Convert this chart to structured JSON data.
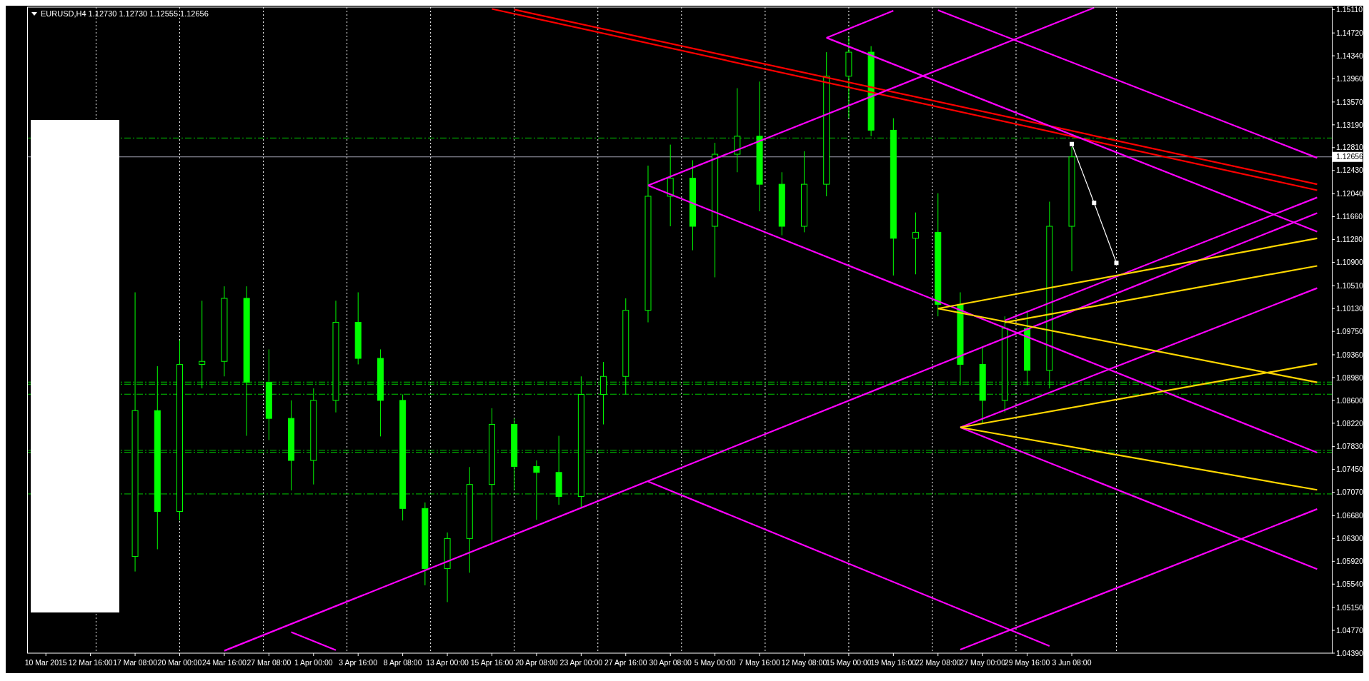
{
  "chart_data": {
    "type": "candlestick",
    "title": "EURUSD,H4  1.12730 1.12730 1.12555 1.12656",
    "color": "#00ff00",
    "categories": [
      "10 Mar 2015",
      null,
      "12 Mar 16:00",
      null,
      "17 Mar 08:00",
      null,
      "20 Mar 00:00",
      null,
      "24 Mar 16:00",
      null,
      "27 Mar 08:00",
      null,
      "1 Apr 00:00",
      null,
      "3 Apr 16:00",
      null,
      "8 Apr 08:00",
      null,
      "13 Apr 00:00",
      null,
      "15 Apr 16:00",
      null,
      "20 Apr 08:00",
      null,
      "23 Apr 00:00",
      null,
      "27 Apr 16:00",
      null,
      "30 Apr 08:00",
      null,
      "5 May 00:00",
      null,
      "7 May 16:00",
      null,
      "12 May 08:00",
      null,
      "15 May 00:00",
      null,
      "19 May 16:00",
      null,
      "22 May 08:00",
      null,
      "27 May 00:00",
      null,
      "29 May 16:00",
      null,
      "3 Jun 08:00",
      null,
      null,
      null,
      null,
      null,
      null,
      null,
      null,
      null,
      null,
      null
    ],
    "grid": "x",
    "ohlc": [
      null,
      null,
      null,
      null,
      [
        1.06,
        1.104,
        1.0575,
        1.0843
      ],
      [
        1.0843,
        1.0917,
        1.0612,
        1.0675
      ],
      [
        1.0675,
        1.096,
        1.066,
        1.092
      ],
      [
        1.092,
        1.1026,
        1.088,
        1.0925
      ],
      [
        1.0925,
        1.105,
        1.09,
        1.103
      ],
      [
        1.103,
        1.105,
        1.0801,
        1.089
      ],
      [
        1.089,
        1.0945,
        1.0794,
        1.083
      ],
      [
        1.083,
        1.086,
        1.071,
        1.076
      ],
      [
        1.076,
        1.088,
        1.072,
        1.086
      ],
      [
        1.086,
        1.1026,
        1.084,
        1.099
      ],
      [
        1.099,
        1.104,
        1.092,
        1.093
      ],
      [
        1.093,
        1.0945,
        1.08,
        1.086
      ],
      [
        1.086,
        1.087,
        1.066,
        1.068
      ],
      [
        1.068,
        1.069,
        1.0552,
        1.058
      ],
      [
        1.058,
        1.064,
        1.0524,
        1.063
      ],
      [
        1.063,
        1.0749,
        1.0573,
        1.072
      ],
      [
        1.072,
        1.0847,
        1.0625,
        1.082
      ],
      [
        1.082,
        1.083,
        1.071,
        1.075
      ],
      [
        1.075,
        1.076,
        1.0661,
        1.074
      ],
      [
        1.074,
        1.0801,
        1.0686,
        1.07
      ],
      [
        1.07,
        1.09,
        1.068,
        1.087
      ],
      [
        1.087,
        1.0924,
        1.082,
        1.09
      ],
      [
        1.09,
        1.103,
        1.087,
        1.101
      ],
      [
        1.101,
        1.1251,
        1.099,
        1.12
      ],
      [
        1.12,
        1.1286,
        1.115,
        1.123
      ],
      [
        1.123,
        1.126,
        1.111,
        1.115
      ],
      [
        1.115,
        1.1289,
        1.1065,
        1.127
      ],
      [
        1.127,
        1.138,
        1.124,
        1.13
      ],
      [
        1.13,
        1.1391,
        1.1175,
        1.122
      ],
      [
        1.122,
        1.124,
        1.1135,
        1.115
      ],
      [
        1.115,
        1.1275,
        1.114,
        1.122
      ],
      [
        1.122,
        1.144,
        1.12,
        1.14
      ],
      [
        1.14,
        1.1465,
        1.133,
        1.144
      ],
      [
        1.144,
        1.145,
        1.13,
        1.131
      ],
      [
        1.131,
        1.133,
        1.1068,
        1.113
      ],
      [
        1.113,
        1.1173,
        1.107,
        1.114
      ],
      [
        1.114,
        1.1205,
        1.1,
        1.102
      ],
      [
        1.102,
        1.104,
        1.0885,
        1.092
      ],
      [
        1.092,
        1.095,
        1.0822,
        1.086
      ],
      [
        1.086,
        1.1,
        1.084,
        1.098
      ],
      [
        1.098,
        1.101,
        1.0885,
        1.091
      ],
      [
        1.091,
        1.1191,
        1.088,
        1.115
      ],
      [
        1.115,
        1.1282,
        1.1075,
        1.12656
      ],
      null,
      null,
      null,
      null,
      null,
      null,
      null,
      null,
      null,
      null,
      null
    ],
    "ylim": [
      1.0439,
      1.1515
    ],
    "yticks": [
      {
        "value": 1.1511,
        "label": "1.15110"
      },
      {
        "value": 1.1472,
        "label": "1.14720"
      },
      {
        "value": 1.1434,
        "label": "1.14340"
      },
      {
        "value": 1.1396,
        "label": "1.13960"
      },
      {
        "value": 1.1357,
        "label": "1.13570"
      },
      {
        "value": 1.1319,
        "label": "1.13190"
      },
      {
        "value": 1.1281,
        "label": "1.12810"
      },
      {
        "value": 1.1243,
        "label": "1.12430"
      },
      {
        "value": 1.1204,
        "label": "1.12040"
      },
      {
        "value": 1.1166,
        "label": "1.11660"
      },
      {
        "value": 1.1128,
        "label": "1.11280"
      },
      {
        "value": 1.109,
        "label": "1.10900"
      },
      {
        "value": 1.1051,
        "label": "1.10510"
      },
      {
        "value": 1.1013,
        "label": "1.10130"
      },
      {
        "value": 1.0975,
        "label": "1.09750"
      },
      {
        "value": 1.0936,
        "label": "1.09360"
      },
      {
        "value": 1.0898,
        "label": "1.08980"
      },
      {
        "value": 1.086,
        "label": "1.08600"
      },
      {
        "value": 1.0822,
        "label": "1.08220"
      },
      {
        "value": 1.0783,
        "label": "1.07830"
      },
      {
        "value": 1.0745,
        "label": "1.07450"
      },
      {
        "value": 1.0707,
        "label": "1.07070"
      },
      {
        "value": 1.0668,
        "label": "1.06680"
      },
      {
        "value": 1.063,
        "label": "1.06300"
      },
      {
        "value": 1.0592,
        "label": "1.05920"
      },
      {
        "value": 1.0554,
        "label": "1.05540"
      },
      {
        "value": 1.0515,
        "label": "1.05150"
      },
      {
        "value": 1.0477,
        "label": "1.04770"
      },
      {
        "value": 1.0439,
        "label": "1.04390"
      }
    ],
    "series": [
      {
        "type": "line",
        "color": "#ff0000",
        "values": [
          null,
          null,
          null,
          null,
          null,
          null,
          null,
          null,
          null,
          null,
          null,
          null,
          null,
          null,
          null,
          null,
          null,
          null,
          null,
          null,
          1.1512,
          null,
          null,
          null,
          null,
          null,
          null,
          null,
          null,
          null,
          null,
          null,
          null,
          null,
          null,
          null,
          null,
          null,
          null,
          null,
          null,
          null,
          null,
          null,
          null,
          null,
          null,
          null,
          null,
          null,
          null,
          null,
          null,
          null,
          null,
          null,
          null,
          1.121
        ]
      },
      {
        "type": "line",
        "color": "#ff0000",
        "values": [
          null,
          null,
          null,
          null,
          null,
          null,
          null,
          null,
          null,
          null,
          null,
          null,
          null,
          null,
          null,
          null,
          null,
          null,
          null,
          null,
          null,
          1.1511,
          null,
          null,
          null,
          null,
          null,
          null,
          null,
          null,
          null,
          null,
          null,
          null,
          null,
          null,
          null,
          null,
          null,
          null,
          null,
          null,
          null,
          null,
          null,
          null,
          null,
          null,
          null,
          null,
          null,
          null,
          null,
          null,
          null,
          null,
          null,
          1.122
        ]
      },
      {
        "type": "line",
        "color": "#ff00ff",
        "values": [
          null,
          null,
          null,
          null,
          null,
          null,
          null,
          null,
          null,
          null,
          null,
          null,
          null,
          null,
          null,
          null,
          null,
          null,
          null,
          null,
          null,
          null,
          null,
          null,
          null,
          null,
          null,
          1.1218,
          null,
          null,
          null,
          null,
          null,
          null,
          null,
          null,
          null,
          null,
          null,
          null,
          null,
          null,
          null,
          null,
          null,
          null,
          null,
          1.1514,
          null,
          null,
          null,
          null,
          null,
          null,
          null,
          null,
          null,
          null
        ]
      },
      {
        "type": "line",
        "color": "#ff00ff",
        "values": [
          null,
          null,
          null,
          null,
          null,
          null,
          null,
          null,
          null,
          null,
          null,
          null,
          null,
          null,
          null,
          null,
          null,
          null,
          null,
          null,
          null,
          null,
          null,
          null,
          null,
          null,
          null,
          1.1218,
          null,
          null,
          null,
          null,
          null,
          null,
          null,
          null,
          null,
          null,
          null,
          null,
          null,
          null,
          null,
          null,
          null,
          null,
          null,
          null,
          null,
          null,
          null,
          null,
          null,
          null,
          null,
          null,
          null,
          1.0773
        ]
      },
      {
        "type": "line",
        "color": "#ff00ff",
        "values": [
          null,
          null,
          null,
          null,
          null,
          null,
          null,
          null,
          null,
          null,
          null,
          null,
          null,
          null,
          null,
          null,
          null,
          null,
          null,
          null,
          null,
          null,
          null,
          null,
          null,
          null,
          null,
          null,
          null,
          null,
          null,
          null,
          null,
          null,
          null,
          1.1464,
          null,
          null,
          1.1509,
          null,
          null,
          null,
          null,
          null,
          null,
          null,
          null,
          null,
          null,
          null,
          null,
          null,
          null,
          null,
          null,
          null,
          null,
          null
        ]
      },
      {
        "type": "line",
        "color": "#ff00ff",
        "values": [
          null,
          null,
          null,
          null,
          null,
          null,
          null,
          null,
          null,
          null,
          null,
          null,
          null,
          null,
          null,
          null,
          null,
          null,
          null,
          null,
          null,
          null,
          null,
          null,
          null,
          null,
          null,
          null,
          null,
          null,
          null,
          null,
          null,
          null,
          null,
          1.1464,
          null,
          null,
          null,
          null,
          null,
          null,
          null,
          null,
          null,
          null,
          null,
          null,
          null,
          null,
          null,
          null,
          null,
          null,
          null,
          null,
          null,
          1.1141
        ]
      },
      {
        "type": "line",
        "color": "#ff00ff",
        "values": [
          null,
          null,
          null,
          null,
          null,
          null,
          null,
          null,
          null,
          null,
          null,
          null,
          null,
          null,
          null,
          null,
          null,
          null,
          null,
          null,
          null,
          null,
          null,
          null,
          null,
          null,
          null,
          null,
          null,
          null,
          null,
          null,
          null,
          null,
          null,
          null,
          null,
          null,
          null,
          null,
          1.151,
          null,
          null,
          null,
          null,
          null,
          null,
          null,
          null,
          null,
          null,
          null,
          null,
          null,
          null,
          null,
          null,
          1.1264
        ]
      },
      {
        "type": "line",
        "color": "#ff00ff",
        "values": [
          null,
          null,
          null,
          null,
          null,
          null,
          null,
          null,
          null,
          null,
          null,
          null,
          null,
          null,
          null,
          null,
          null,
          null,
          null,
          null,
          null,
          null,
          null,
          null,
          null,
          null,
          null,
          null,
          null,
          null,
          null,
          null,
          null,
          null,
          null,
          null,
          null,
          null,
          null,
          null,
          null,
          1.0815,
          null,
          null,
          null,
          null,
          null,
          null,
          null,
          null,
          null,
          null,
          null,
          null,
          null,
          null,
          null,
          1.1047
        ]
      },
      {
        "type": "line",
        "color": "#ff00ff",
        "values": [
          null,
          null,
          null,
          null,
          null,
          null,
          null,
          null,
          null,
          null,
          null,
          null,
          null,
          null,
          null,
          null,
          null,
          null,
          null,
          null,
          null,
          null,
          null,
          null,
          null,
          null,
          null,
          null,
          null,
          null,
          null,
          null,
          null,
          null,
          null,
          null,
          null,
          null,
          null,
          null,
          null,
          1.0815,
          null,
          null,
          null,
          null,
          null,
          null,
          null,
          null,
          null,
          null,
          null,
          null,
          null,
          null,
          null,
          1.0579
        ]
      },
      {
        "type": "line",
        "color": "#ff00ff",
        "values": [
          null,
          null,
          null,
          null,
          null,
          null,
          null,
          null,
          null,
          null,
          null,
          null,
          null,
          null,
          null,
          null,
          null,
          null,
          null,
          null,
          null,
          null,
          null,
          null,
          null,
          null,
          null,
          null,
          null,
          null,
          null,
          null,
          null,
          null,
          null,
          null,
          null,
          null,
          null,
          null,
          null,
          null,
          null,
          1.0993,
          null,
          null,
          null,
          null,
          null,
          null,
          null,
          null,
          null,
          null,
          null,
          null,
          null,
          1.1198
        ]
      },
      {
        "type": "line",
        "color": "#ff00ff",
        "values": [
          null,
          null,
          null,
          null,
          null,
          null,
          null,
          null,
          1.0443,
          null,
          null,
          null,
          null,
          null,
          null,
          null,
          null,
          null,
          null,
          null,
          null,
          null,
          null,
          null,
          null,
          null,
          null,
          null,
          null,
          null,
          null,
          null,
          null,
          null,
          null,
          null,
          null,
          null,
          null,
          null,
          null,
          null,
          null,
          null,
          null,
          null,
          null,
          null,
          null,
          null,
          null,
          null,
          null,
          null,
          null,
          null,
          null,
          1.1172
        ]
      },
      {
        "type": "line",
        "color": "#ff00ff",
        "values": [
          null,
          null,
          null,
          null,
          null,
          null,
          null,
          null,
          null,
          null,
          null,
          null,
          null,
          null,
          null,
          null,
          null,
          null,
          null,
          null,
          null,
          null,
          null,
          null,
          null,
          null,
          null,
          1.0725,
          null,
          null,
          null,
          null,
          null,
          null,
          null,
          null,
          null,
          null,
          null,
          null,
          null,
          null,
          null,
          null,
          null,
          1.0451,
          null,
          null,
          null,
          null,
          null,
          null,
          null,
          null,
          null,
          null,
          null,
          null
        ]
      },
      {
        "type": "line",
        "color": "#ff00ff",
        "values": [
          null,
          null,
          null,
          null,
          null,
          null,
          null,
          null,
          null,
          null,
          null,
          1.0474,
          null,
          1.0444,
          null,
          null,
          null,
          null,
          null,
          null,
          null,
          null,
          null,
          null,
          null,
          null,
          null,
          null,
          null,
          null,
          null,
          null,
          null,
          null,
          null,
          null,
          null,
          null,
          null,
          null,
          null,
          null,
          null,
          null,
          null,
          null,
          null,
          null,
          null,
          null,
          null,
          null,
          null,
          null,
          null,
          null,
          null,
          null
        ]
      },
      {
        "type": "line",
        "color": "#ff00ff",
        "values": [
          null,
          null,
          null,
          null,
          null,
          null,
          null,
          null,
          null,
          null,
          null,
          null,
          null,
          null,
          null,
          null,
          null,
          null,
          null,
          null,
          null,
          null,
          null,
          null,
          null,
          null,
          null,
          null,
          null,
          null,
          null,
          null,
          null,
          null,
          null,
          null,
          null,
          null,
          null,
          null,
          null,
          1.0445,
          null,
          null,
          null,
          null,
          null,
          null,
          null,
          null,
          null,
          null,
          null,
          null,
          null,
          null,
          null,
          1.0679
        ]
      },
      {
        "type": "line",
        "color": "#ffd700",
        "values": [
          null,
          null,
          null,
          null,
          null,
          null,
          null,
          null,
          null,
          null,
          null,
          null,
          null,
          null,
          null,
          null,
          null,
          null,
          null,
          null,
          null,
          null,
          null,
          null,
          null,
          null,
          null,
          null,
          null,
          null,
          null,
          null,
          null,
          null,
          null,
          null,
          null,
          null,
          null,
          null,
          1.1013,
          null,
          null,
          null,
          null,
          null,
          null,
          null,
          null,
          null,
          null,
          null,
          null,
          null,
          null,
          null,
          null,
          1.113
        ]
      },
      {
        "type": "line",
        "color": "#ffd700",
        "values": [
          null,
          null,
          null,
          null,
          null,
          null,
          null,
          null,
          null,
          null,
          null,
          null,
          null,
          null,
          null,
          null,
          null,
          null,
          null,
          null,
          null,
          null,
          null,
          null,
          null,
          null,
          null,
          null,
          null,
          null,
          null,
          null,
          null,
          null,
          null,
          null,
          null,
          null,
          null,
          null,
          1.1013,
          null,
          null,
          null,
          null,
          null,
          null,
          null,
          null,
          null,
          null,
          null,
          null,
          null,
          null,
          null,
          null,
          1.089
        ]
      },
      {
        "type": "line",
        "color": "#ffd700",
        "values": [
          null,
          null,
          null,
          null,
          null,
          null,
          null,
          null,
          null,
          null,
          null,
          null,
          null,
          null,
          null,
          null,
          null,
          null,
          null,
          null,
          null,
          null,
          null,
          null,
          null,
          null,
          null,
          null,
          null,
          null,
          null,
          null,
          null,
          null,
          null,
          null,
          null,
          null,
          null,
          null,
          null,
          1.0815,
          null,
          null,
          null,
          null,
          null,
          null,
          null,
          null,
          null,
          null,
          null,
          null,
          null,
          null,
          null,
          1.0921
        ]
      },
      {
        "type": "line",
        "color": "#ffd700",
        "values": [
          null,
          null,
          null,
          null,
          null,
          null,
          null,
          null,
          null,
          null,
          null,
          null,
          null,
          null,
          null,
          null,
          null,
          null,
          null,
          null,
          null,
          null,
          null,
          null,
          null,
          null,
          null,
          null,
          null,
          null,
          null,
          null,
          null,
          null,
          null,
          null,
          null,
          null,
          null,
          null,
          null,
          1.0815,
          null,
          null,
          null,
          null,
          null,
          null,
          null,
          null,
          null,
          null,
          null,
          null,
          null,
          null,
          null,
          1.0711
        ]
      },
      {
        "type": "line",
        "color": "#ffd700",
        "values": [
          null,
          null,
          null,
          null,
          null,
          null,
          null,
          null,
          null,
          null,
          null,
          null,
          null,
          null,
          null,
          null,
          null,
          null,
          null,
          null,
          null,
          null,
          null,
          null,
          null,
          null,
          null,
          null,
          null,
          null,
          null,
          null,
          null,
          null,
          null,
          null,
          null,
          null,
          null,
          null,
          null,
          null,
          null,
          1.099,
          null,
          null,
          null,
          null,
          null,
          null,
          null,
          null,
          null,
          null,
          null,
          null,
          null,
          1.1084
        ]
      },
      {
        "type": "line",
        "color": "#ffffff",
        "marker": "square",
        "values": [
          null,
          null,
          null,
          null,
          null,
          null,
          null,
          null,
          null,
          null,
          null,
          null,
          null,
          null,
          null,
          null,
          null,
          null,
          null,
          null,
          null,
          null,
          null,
          null,
          null,
          null,
          null,
          null,
          null,
          null,
          null,
          null,
          null,
          null,
          null,
          null,
          null,
          null,
          null,
          null,
          null,
          null,
          null,
          null,
          null,
          null,
          1.1287,
          1.1189,
          1.1089,
          null,
          null,
          null,
          null,
          null,
          null,
          null,
          null,
          null
        ]
      }
    ],
    "ref_lines": [
      {
        "axis": "y",
        "value": 1.1297,
        "color": "#00c800",
        "line_style": "dashed"
      },
      {
        "axis": "y",
        "value": 1.12656,
        "label": "1.12656",
        "color": "#a0a0b0",
        "line_style": "solid"
      },
      {
        "axis": "y",
        "value": 1.08905,
        "color": "#00c800",
        "line_style": "dashed"
      },
      {
        "axis": "y",
        "value": 1.08869,
        "color": "#00c800",
        "line_style": "dashed"
      },
      {
        "axis": "y",
        "value": 1.08703,
        "color": "#00c800",
        "line_style": "dashed"
      },
      {
        "axis": "y",
        "value": 1.07769,
        "color": "#00c800",
        "line_style": "dashed"
      },
      {
        "axis": "y",
        "value": 1.07735,
        "color": "#00c800",
        "line_style": "dashed"
      },
      {
        "axis": "y",
        "value": 1.07042,
        "color": "#00c800",
        "line_style": "dashed"
      }
    ]
  }
}
